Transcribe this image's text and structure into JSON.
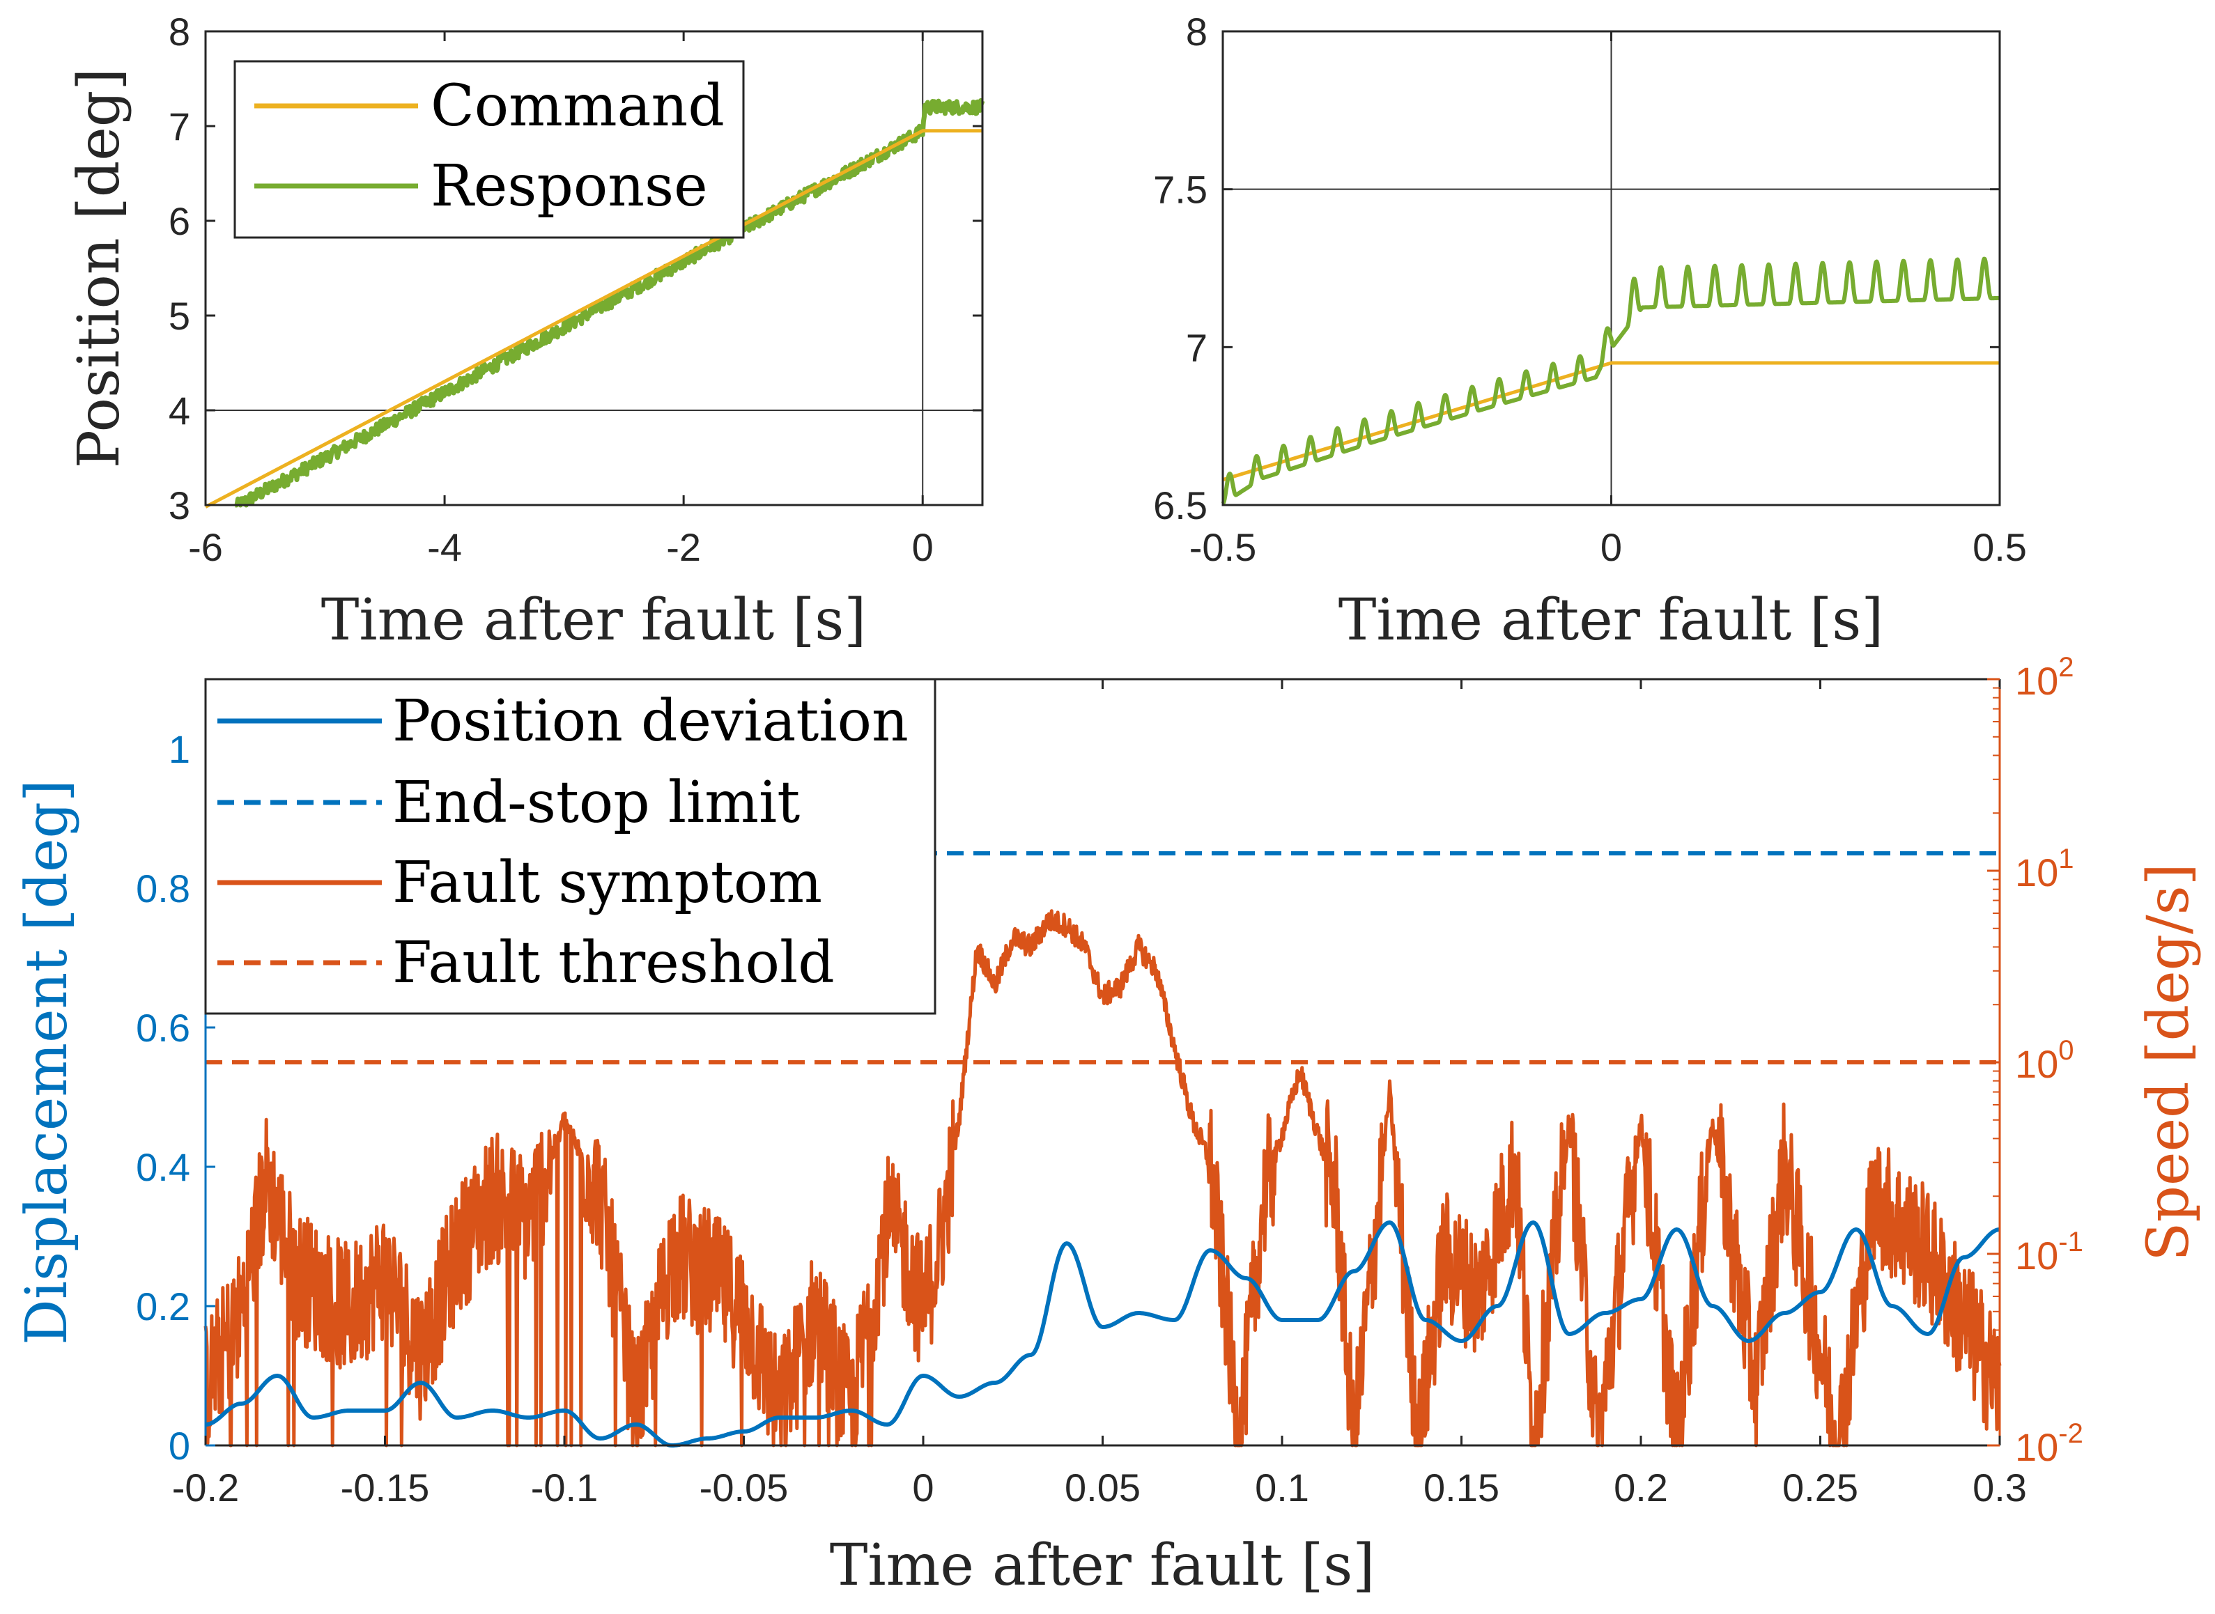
{
  "colors": {
    "command": "#EDB120",
    "response": "#77AC30",
    "deviation": "#0072BD",
    "symptom": "#D95319",
    "axis": "#262626",
    "grid": "#333333"
  },
  "chart_data": [
    {
      "id": "top-left",
      "type": "line",
      "xlabel": "Time after fault [s]",
      "ylabel": "Position [deg]",
      "xlim": [
        -6,
        0.5
      ],
      "ylim": [
        3,
        8
      ],
      "xticks": [
        -6,
        -4,
        -2,
        0
      ],
      "xtick_labels": [
        "-6",
        "-4",
        "-2",
        "0"
      ],
      "yticks": [
        3,
        4,
        5,
        6,
        7,
        8
      ],
      "ytick_labels": [
        "3",
        "4",
        "5",
        "6",
        "7",
        "8"
      ],
      "reference_lines": {
        "y": [
          4
        ],
        "x": [
          0
        ]
      },
      "legend": {
        "position": "top-left",
        "entries": [
          "Command",
          "Response"
        ]
      },
      "series": [
        {
          "name": "Command",
          "x": [
            -6,
            0,
            0.5
          ],
          "y": [
            2.98,
            6.95,
            6.95
          ]
        },
        {
          "name": "Response",
          "x": [
            -5.75,
            0,
            0.02,
            0.5
          ],
          "y": [
            2.98,
            6.95,
            7.2,
            7.2
          ]
        }
      ]
    },
    {
      "id": "top-right",
      "type": "line",
      "xlabel": "Time after fault [s]",
      "ylabel": "",
      "xlim": [
        -0.5,
        0.5
      ],
      "ylim": [
        6.5,
        8
      ],
      "xticks": [
        -0.5,
        0,
        0.5
      ],
      "xtick_labels": [
        "-0.5",
        "0",
        "0.5"
      ],
      "yticks": [
        6.5,
        7,
        7.5,
        8
      ],
      "ytick_labels": [
        "6.5",
        "7",
        "7.5",
        "8"
      ],
      "reference_lines": {
        "y": [
          7.5
        ],
        "x": [
          0
        ]
      },
      "series": [
        {
          "name": "Command",
          "x": [
            -0.5,
            0,
            0.5
          ],
          "y": [
            6.58,
            6.95,
            6.95
          ]
        },
        {
          "name": "Response",
          "x": [
            -0.5,
            -0.45,
            -0.3,
            -0.15,
            -0.02,
            0,
            0.04,
            0.5
          ],
          "y": [
            6.52,
            6.6,
            6.72,
            6.83,
            6.92,
            7.02,
            7.15,
            7.18
          ]
        }
      ]
    },
    {
      "id": "bottom",
      "type": "line",
      "xlabel": "Time after fault [s]",
      "ylabel": "Displacement [deg]",
      "ylabel_right": "Speed [deg/s]",
      "xlim": [
        -0.2,
        0.3
      ],
      "ylim": [
        0,
        1.1
      ],
      "ylim_right": [
        0.01,
        100
      ],
      "y_right_scale": "log",
      "xticks": [
        -0.2,
        -0.15,
        -0.1,
        -0.05,
        0,
        0.05,
        0.1,
        0.15,
        0.2,
        0.25,
        0.3
      ],
      "xtick_labels": [
        "-0.2",
        "-0.15",
        "-0.1",
        "-0.05",
        "0",
        "0.05",
        "0.1",
        "0.15",
        "0.2",
        "0.25",
        "0.3"
      ],
      "yticks": [
        0,
        0.2,
        0.4,
        0.6,
        0.8,
        1
      ],
      "ytick_labels": [
        "0",
        "0.2",
        "0.4",
        "0.6",
        "0.8",
        "1"
      ],
      "yticks_right": [
        0.01,
        0.1,
        1,
        10,
        100
      ],
      "ytick_labels_right": [
        {
          "base": "10",
          "exp": "-2"
        },
        {
          "base": "10",
          "exp": "-1"
        },
        {
          "base": "10",
          "exp": "0"
        },
        {
          "base": "10",
          "exp": "1"
        },
        {
          "base": "10",
          "exp": "2"
        }
      ],
      "legend": {
        "position": "top-left",
        "entries": [
          "Position deviation",
          "End-stop limit",
          "Fault symptom",
          "Fault threshold"
        ]
      },
      "series": [
        {
          "name": "Position deviation",
          "axis": "left",
          "x": [
            -0.2,
            -0.19,
            -0.18,
            -0.17,
            -0.16,
            -0.15,
            -0.14,
            -0.13,
            -0.12,
            -0.11,
            -0.1,
            -0.09,
            -0.08,
            -0.07,
            -0.06,
            -0.05,
            -0.04,
            -0.03,
            -0.02,
            -0.01,
            0,
            0.01,
            0.02,
            0.03,
            0.04,
            0.05,
            0.06,
            0.07,
            0.08,
            0.09,
            0.1,
            0.11,
            0.12,
            0.13,
            0.14,
            0.15,
            0.16,
            0.17,
            0.18,
            0.19,
            0.2,
            0.21,
            0.22,
            0.23,
            0.24,
            0.25,
            0.26,
            0.27,
            0.28,
            0.29,
            0.3
          ],
          "y": [
            0.03,
            0.06,
            0.1,
            0.04,
            0.05,
            0.05,
            0.09,
            0.04,
            0.05,
            0.04,
            0.05,
            0.01,
            0.03,
            0.0,
            0.01,
            0.02,
            0.04,
            0.04,
            0.05,
            0.03,
            0.1,
            0.07,
            0.09,
            0.13,
            0.29,
            0.17,
            0.19,
            0.18,
            0.28,
            0.24,
            0.18,
            0.18,
            0.25,
            0.32,
            0.18,
            0.15,
            0.2,
            0.32,
            0.16,
            0.19,
            0.21,
            0.31,
            0.2,
            0.15,
            0.19,
            0.22,
            0.31,
            0.2,
            0.16,
            0.27,
            0.31
          ]
        },
        {
          "name": "End-stop limit",
          "axis": "left",
          "style": "dashed",
          "x": [
            0,
            0.3
          ],
          "y": [
            0.85,
            0.85
          ]
        },
        {
          "name": "Fault symptom",
          "axis": "right",
          "x": [
            -0.2,
            -0.19,
            -0.183,
            -0.175,
            -0.16,
            -0.15,
            -0.14,
            -0.13,
            -0.12,
            -0.11,
            -0.1,
            -0.09,
            -0.08,
            -0.07,
            -0.06,
            -0.05,
            -0.04,
            -0.03,
            -0.02,
            -0.01,
            -0.005,
            0,
            0.005,
            0.01,
            0.015,
            0.02,
            0.025,
            0.03,
            0.035,
            0.04,
            0.045,
            0.05,
            0.055,
            0.06,
            0.065,
            0.07,
            0.075,
            0.08,
            0.085,
            0.088,
            0.095,
            0.105,
            0.115,
            0.12,
            0.13,
            0.138,
            0.145,
            0.155,
            0.165,
            0.17,
            0.18,
            0.188,
            0.2,
            0.21,
            0.22,
            0.232,
            0.24,
            0.255,
            0.265,
            0.28,
            0.3
          ],
          "y": [
            0.02,
            0.05,
            0.25,
            0.08,
            0.05,
            0.08,
            0.03,
            0.1,
            0.2,
            0.15,
            0.5,
            0.2,
            0.015,
            0.1,
            0.08,
            0.05,
            0.015,
            0.05,
            0.015,
            0.15,
            0.1,
            0.05,
            0.12,
            0.5,
            4.0,
            2.5,
            4.5,
            4.0,
            5.5,
            5.2,
            4.0,
            2.2,
            2.5,
            4.0,
            3.0,
            1.2,
            0.5,
            0.3,
            0.04,
            0.01,
            0.2,
            0.9,
            0.2,
            0.01,
            0.7,
            0.01,
            0.1,
            0.06,
            0.3,
            0.01,
            0.5,
            0.01,
            0.5,
            0.01,
            0.5,
            0.02,
            0.3,
            0.01,
            0.2,
            0.1,
            0.02
          ]
        },
        {
          "name": "Fault threshold",
          "axis": "right",
          "style": "dashed",
          "x": [
            0,
            0.3
          ],
          "y": [
            1,
            1
          ]
        }
      ]
    }
  ]
}
